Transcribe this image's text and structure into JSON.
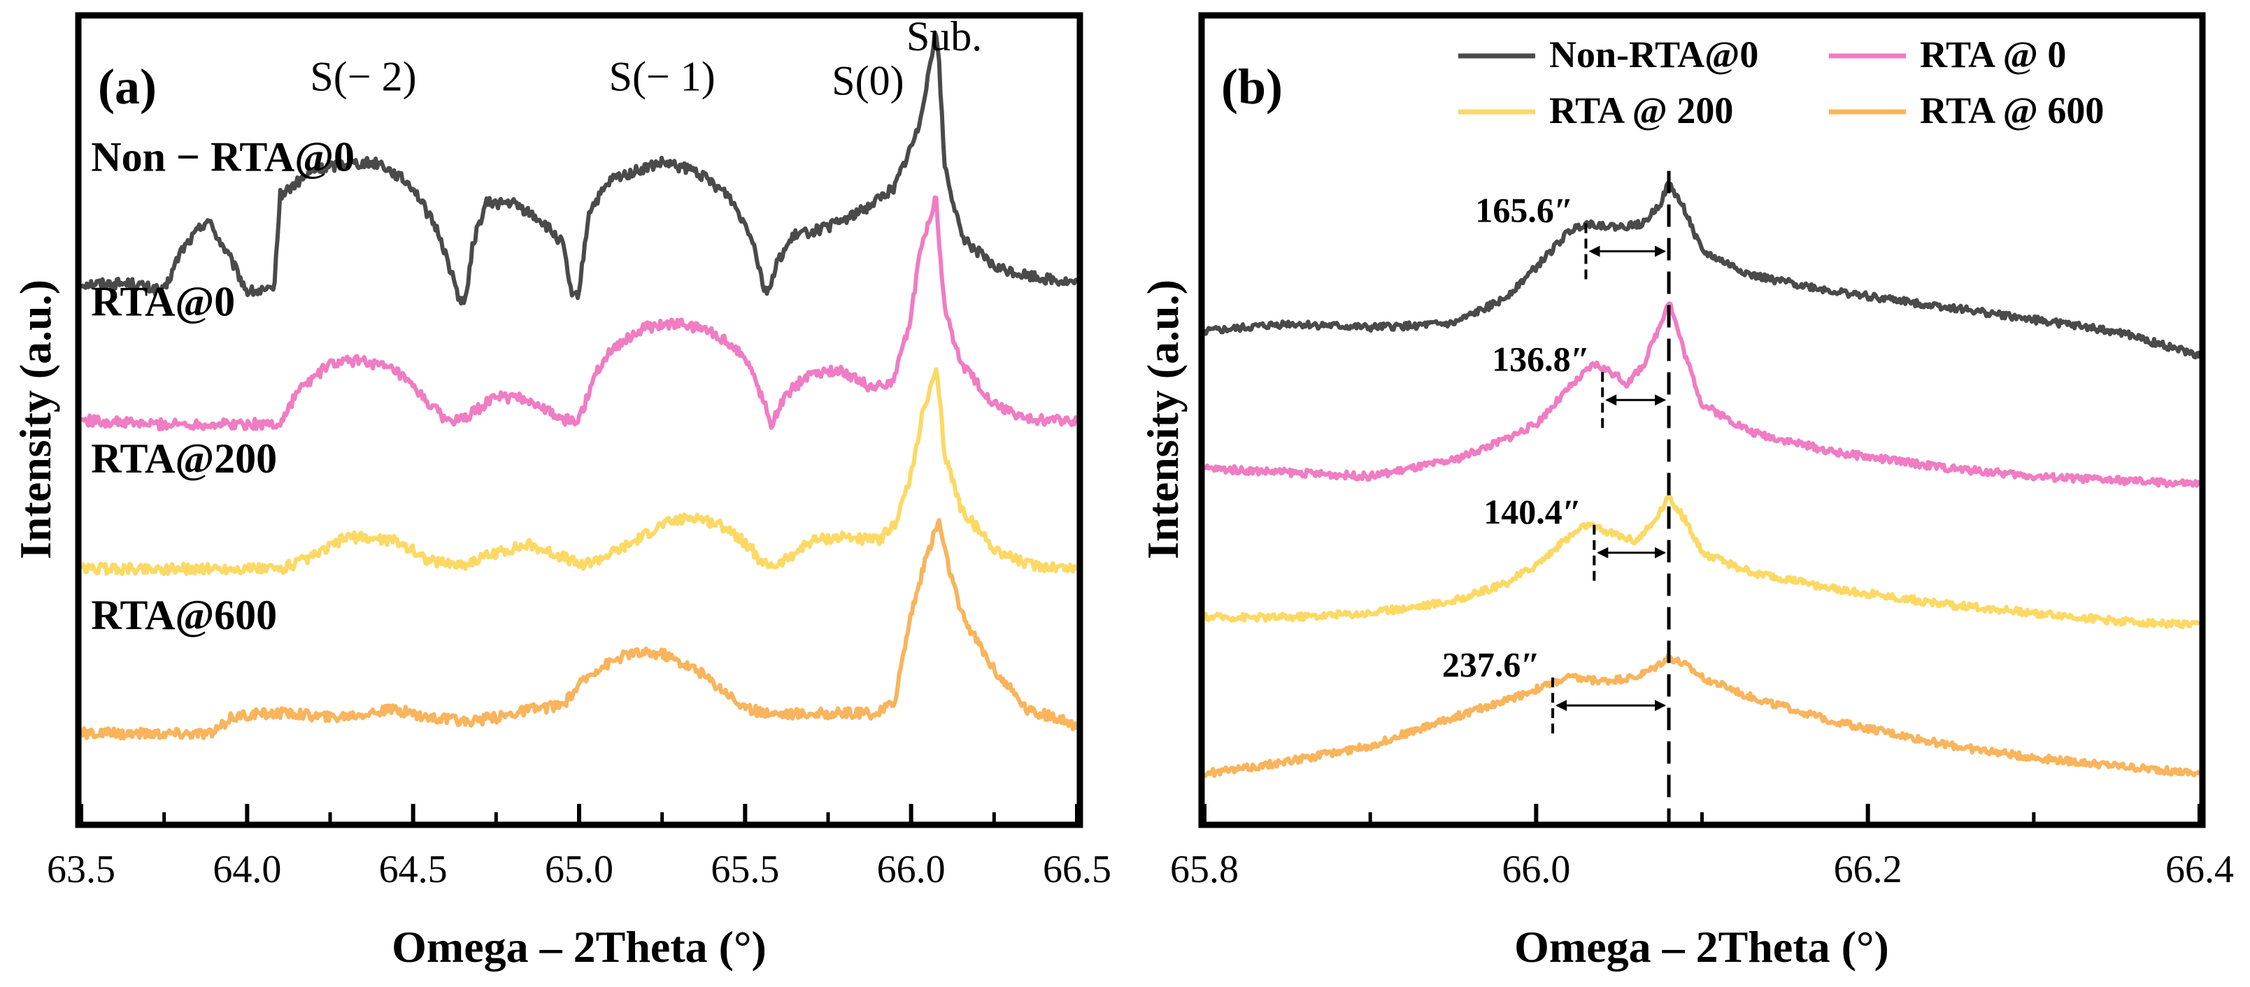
{
  "colors": {
    "non_rta": "#4a4a4a",
    "rta0": "#f07cc4",
    "rta200": "#fcd964",
    "rta600": "#f9b45c",
    "frame": "#000000"
  },
  "chart_data": [
    {
      "type": "line",
      "panel_label": "(a)",
      "xlabel": "Omega – 2Theta (°)",
      "ylabel": "Intensity (a.u.)",
      "xlim": [
        63.5,
        66.5
      ],
      "ylim": [
        0,
        10
      ],
      "x_ticks": [
        63.5,
        64.0,
        64.5,
        65.0,
        65.5,
        66.0,
        66.5
      ],
      "x_tick_labels": [
        "63.5",
        "64.0",
        "64.5",
        "65.0",
        "65.5",
        "66.0",
        "66.5"
      ],
      "x_minor_ticks": [
        63.75,
        64.25,
        64.75,
        65.25,
        65.75,
        66.25
      ],
      "grid": false,
      "peak_annotations": [
        {
          "text": "S(− 2)",
          "x": 64.35,
          "y": 9.1
        },
        {
          "text": "S(− 1)",
          "x": 65.25,
          "y": 9.1
        },
        {
          "text": "S(0)",
          "x": 65.87,
          "y": 9.05
        },
        {
          "text": "Sub.",
          "x": 66.1,
          "y": 9.6
        }
      ],
      "series": [
        {
          "name": "Non − RTA@0",
          "label_x": 63.53,
          "label_y": 8.1,
          "color_key": "non_rta",
          "x": [
            63.5,
            63.65,
            63.75,
            63.8,
            63.88,
            63.95,
            64.0,
            64.05,
            64.08,
            64.1,
            64.2,
            64.3,
            64.4,
            64.5,
            64.58,
            64.64,
            64.66,
            64.68,
            64.72,
            64.8,
            64.88,
            64.95,
            64.98,
            65.0,
            65.03,
            65.1,
            65.25,
            65.35,
            65.45,
            65.52,
            65.56,
            65.58,
            65.6,
            65.65,
            65.75,
            65.85,
            65.95,
            66.02,
            66.06,
            66.075,
            66.085,
            66.1,
            66.15,
            66.25,
            66.35,
            66.5
          ],
          "y": [
            6.7,
            6.7,
            6.6,
            7.1,
            7.5,
            7.0,
            6.6,
            6.6,
            6.6,
            7.8,
            8.1,
            8.2,
            8.2,
            7.9,
            7.3,
            6.5,
            6.5,
            7.2,
            7.7,
            7.7,
            7.5,
            7.2,
            6.5,
            6.6,
            7.6,
            8.0,
            8.2,
            8.1,
            7.8,
            7.3,
            6.6,
            6.7,
            7.0,
            7.3,
            7.4,
            7.6,
            7.9,
            8.6,
            9.5,
            9.85,
            9.4,
            8.2,
            7.3,
            6.9,
            6.8,
            6.7
          ]
        },
        {
          "name": "RTA@0",
          "label_x": 63.53,
          "label_y": 6.3,
          "color_key": "rta0",
          "x": [
            63.5,
            63.7,
            63.9,
            64.1,
            64.15,
            64.25,
            64.35,
            64.45,
            64.55,
            64.6,
            64.65,
            64.75,
            64.85,
            64.95,
            65.0,
            65.05,
            65.1,
            65.2,
            65.3,
            65.4,
            65.5,
            65.55,
            65.58,
            65.62,
            65.7,
            65.8,
            65.88,
            65.95,
            66.0,
            66.03,
            66.06,
            66.075,
            66.085,
            66.1,
            66.15,
            66.25,
            66.35,
            66.5
          ],
          "y": [
            5.0,
            4.95,
            4.95,
            4.95,
            5.35,
            5.7,
            5.75,
            5.6,
            5.2,
            5.0,
            5.0,
            5.3,
            5.25,
            5.0,
            5.0,
            5.6,
            5.9,
            6.15,
            6.2,
            6.1,
            5.8,
            5.3,
            4.95,
            5.3,
            5.6,
            5.6,
            5.4,
            5.5,
            6.3,
            7.2,
            7.5,
            7.8,
            7.2,
            6.4,
            5.7,
            5.2,
            5.0,
            5.0
          ]
        },
        {
          "name": "RTA@200",
          "label_x": 63.53,
          "label_y": 4.35,
          "color_key": "rta200",
          "x": [
            63.5,
            63.7,
            63.9,
            64.1,
            64.2,
            64.3,
            64.45,
            64.55,
            64.65,
            64.75,
            64.85,
            64.95,
            65.0,
            65.05,
            65.15,
            65.25,
            65.35,
            65.45,
            65.52,
            65.55,
            65.6,
            65.7,
            65.8,
            65.9,
            65.95,
            66.0,
            66.03,
            66.06,
            66.075,
            66.085,
            66.1,
            66.15,
            66.25,
            66.35,
            66.5
          ],
          "y": [
            3.15,
            3.15,
            3.15,
            3.15,
            3.3,
            3.55,
            3.5,
            3.25,
            3.2,
            3.35,
            3.45,
            3.3,
            3.2,
            3.25,
            3.45,
            3.7,
            3.8,
            3.65,
            3.4,
            3.2,
            3.2,
            3.5,
            3.55,
            3.5,
            3.7,
            4.3,
            5.0,
            5.4,
            5.6,
            5.3,
            4.6,
            3.9,
            3.4,
            3.2,
            3.15
          ]
        },
        {
          "name": "RTA@600",
          "label_x": 63.53,
          "label_y": 2.4,
          "color_key": "rta600",
          "x": [
            63.5,
            63.7,
            63.9,
            63.95,
            64.05,
            64.15,
            64.25,
            64.35,
            64.45,
            64.55,
            64.65,
            64.75,
            64.85,
            64.95,
            65.0,
            65.05,
            65.15,
            65.25,
            65.35,
            65.45,
            65.5,
            65.6,
            65.7,
            65.8,
            65.9,
            65.95,
            66.0,
            66.04,
            66.07,
            66.085,
            66.1,
            66.15,
            66.25,
            66.35,
            66.5
          ],
          "y": [
            1.1,
            1.1,
            1.1,
            1.3,
            1.35,
            1.35,
            1.3,
            1.35,
            1.4,
            1.3,
            1.25,
            1.3,
            1.4,
            1.45,
            1.7,
            1.9,
            2.1,
            2.1,
            1.9,
            1.6,
            1.4,
            1.35,
            1.35,
            1.35,
            1.35,
            1.5,
            2.6,
            3.2,
            3.6,
            3.75,
            3.4,
            2.6,
            1.9,
            1.4,
            1.2
          ]
        }
      ]
    },
    {
      "type": "line",
      "panel_label": "(b)",
      "xlabel": "Omega – 2Theta (°)",
      "ylabel": "Intensity (a.u.)",
      "xlim": [
        65.8,
        66.4
      ],
      "ylim": [
        0,
        10
      ],
      "x_ticks": [
        65.8,
        66.0,
        66.2,
        66.4
      ],
      "x_tick_labels": [
        "65.8",
        "66.0",
        "66.2",
        "66.4"
      ],
      "x_minor_ticks": [
        65.9,
        66.1,
        66.3
      ],
      "grid": false,
      "legend": {
        "position": "top",
        "entries": [
          {
            "label": "Non-RTA@0",
            "color_key": "non_rta"
          },
          {
            "label": "RTA @ 0",
            "color_key": "rta0"
          },
          {
            "label": "RTA @ 200",
            "color_key": "rta200"
          },
          {
            "label": "RTA @ 600",
            "color_key": "rta600"
          }
        ]
      },
      "reference_line_x": 66.08,
      "fwhm_annotations": [
        {
          "text": "165.6″",
          "x_left": 66.03,
          "x_right": 66.08,
          "y": 7.1
        },
        {
          "text": "136.8″",
          "x_left": 66.04,
          "x_right": 66.08,
          "y": 5.25
        },
        {
          "text": "140.4″",
          "x_left": 66.035,
          "x_right": 66.08,
          "y": 3.35
        },
        {
          "text": "237.6″",
          "x_left": 66.01,
          "x_right": 66.08,
          "y": 1.45
        }
      ],
      "series": [
        {
          "name": "Non-RTA@0",
          "color_key": "non_rta",
          "x": [
            65.8,
            65.85,
            65.9,
            65.95,
            65.98,
            66.0,
            66.02,
            66.03,
            66.05,
            66.065,
            66.075,
            66.08,
            66.09,
            66.1,
            66.13,
            66.18,
            66.25,
            66.3,
            66.35,
            66.4
          ],
          "y": [
            6.1,
            6.2,
            6.15,
            6.2,
            6.5,
            6.9,
            7.35,
            7.45,
            7.4,
            7.45,
            7.7,
            7.95,
            7.6,
            7.1,
            6.8,
            6.6,
            6.4,
            6.25,
            6.1,
            5.8
          ]
        },
        {
          "name": "RTA @ 0",
          "color_key": "rta0",
          "x": [
            65.8,
            65.85,
            65.9,
            65.95,
            65.98,
            66.0,
            66.02,
            66.035,
            66.045,
            66.055,
            66.065,
            66.075,
            66.08,
            66.09,
            66.1,
            66.13,
            66.18,
            66.25,
            66.3,
            66.35,
            66.4
          ],
          "y": [
            4.4,
            4.35,
            4.3,
            4.5,
            4.75,
            4.95,
            5.4,
            5.7,
            5.6,
            5.45,
            5.7,
            6.2,
            6.5,
            5.8,
            5.2,
            4.85,
            4.6,
            4.4,
            4.3,
            4.25,
            4.2
          ]
        },
        {
          "name": "RTA @ 200",
          "color_key": "rta200",
          "x": [
            65.8,
            65.85,
            65.9,
            65.95,
            65.98,
            66.0,
            66.02,
            66.03,
            66.045,
            66.06,
            66.07,
            66.08,
            66.09,
            66.1,
            66.13,
            66.18,
            66.25,
            66.3,
            66.35,
            66.4
          ],
          "y": [
            2.55,
            2.55,
            2.6,
            2.75,
            2.95,
            3.2,
            3.55,
            3.7,
            3.6,
            3.5,
            3.7,
            4.05,
            3.75,
            3.35,
            3.1,
            2.9,
            2.7,
            2.6,
            2.5,
            2.45
          ]
        },
        {
          "name": "RTA @ 600",
          "color_key": "rta600",
          "x": [
            65.8,
            65.85,
            65.9,
            65.95,
            65.98,
            66.0,
            66.02,
            66.04,
            66.06,
            66.07,
            66.08,
            66.09,
            66.1,
            66.13,
            66.18,
            66.25,
            66.3,
            66.35,
            66.4
          ],
          "y": [
            0.6,
            0.75,
            0.95,
            1.3,
            1.5,
            1.65,
            1.8,
            1.75,
            1.8,
            1.9,
            2.05,
            1.95,
            1.8,
            1.55,
            1.25,
            0.95,
            0.8,
            0.7,
            0.6
          ]
        }
      ]
    }
  ]
}
